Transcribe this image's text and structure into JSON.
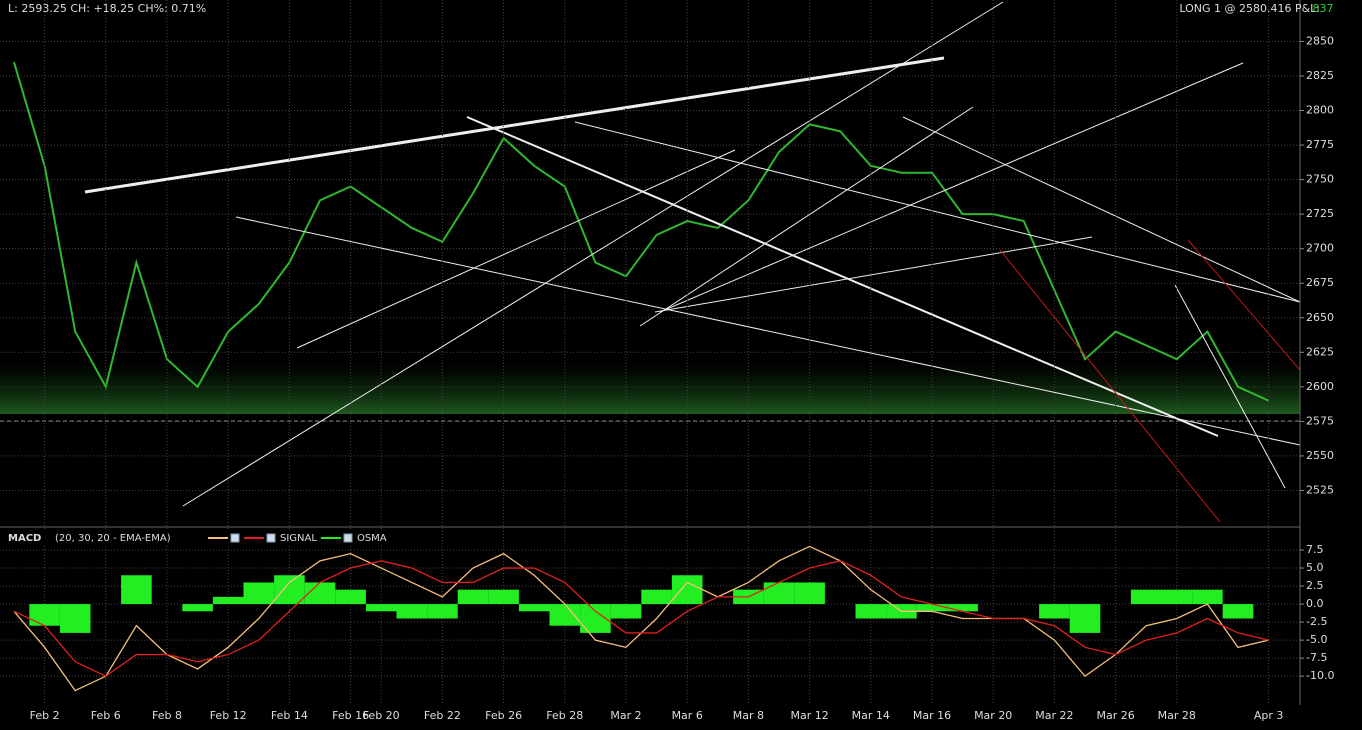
{
  "header": {
    "quote": "L: 2593.25 CH: +18.25 CH%: 0.71%",
    "position": "LONG 1 @ 2580.416 P&L:",
    "pnl": "837"
  },
  "chart_data": [
    {
      "type": "line",
      "color": "#2fb82f",
      "values": [
        2835,
        2760,
        2640,
        2600,
        2690,
        2620,
        2600,
        2640,
        2660,
        2690,
        2735,
        2745,
        2730,
        2715,
        2705,
        2740,
        2780,
        2760,
        2745,
        2690,
        2680,
        2710,
        2720,
        2715,
        2735,
        2770,
        2790,
        2785,
        2760,
        2755,
        2755,
        2725,
        2725,
        2720,
        2670,
        2620,
        2640,
        2630,
        2620,
        2640,
        2600,
        2590
      ],
      "ylim": [
        2500,
        2880
      ],
      "yticks": [
        2525,
        2550,
        2575,
        2600,
        2625,
        2650,
        2675,
        2700,
        2725,
        2750,
        2775,
        2800,
        2825,
        2850
      ],
      "grid": true
    },
    {
      "type": "macd",
      "title": "MACD",
      "subtitle": "(20, 30, 20 - EMA-EMA)",
      "categories": [
        null,
        "Feb 2",
        null,
        "Feb 6",
        null,
        "Feb 8",
        null,
        "Feb 12",
        null,
        "Feb 14",
        null,
        "Feb 16",
        "Feb 20",
        null,
        "Feb 22",
        null,
        "Feb 26",
        null,
        "Feb 28",
        null,
        "Mar 2",
        null,
        "Mar 6",
        null,
        "Mar 8",
        null,
        "Mar 12",
        null,
        "Mar 14",
        null,
        "Mar 16",
        null,
        "Mar 20",
        null,
        "Mar 22",
        null,
        "Mar 26",
        null,
        "Mar 28",
        null,
        null,
        "Apr 3"
      ],
      "series": [
        {
          "color": "#f5c07a",
          "values": [
            -1,
            -6,
            -12,
            -10,
            -3,
            -7,
            -9,
            -6,
            -2,
            3,
            6,
            7,
            5,
            3,
            1,
            5,
            7,
            4,
            0,
            -5,
            -6,
            -2,
            3,
            1,
            3,
            6,
            8,
            6,
            2,
            -1,
            -1,
            -2,
            -2,
            -2,
            -5,
            -10,
            -7,
            -3,
            -2,
            0,
            -6,
            -5
          ]
        },
        {
          "name": "SIGNAL",
          "color": "#e02020",
          "values": [
            -1,
            -3,
            -8,
            -10,
            -7,
            -7,
            -8,
            -7,
            -5,
            -1,
            3,
            5,
            6,
            5,
            3,
            3,
            5,
            5,
            3,
            -1,
            -4,
            -4,
            -1,
            1,
            1,
            3,
            5,
            6,
            4,
            1,
            0,
            -1,
            -2,
            -2,
            -3,
            -6,
            -7,
            -5,
            -4,
            -2,
            -4,
            -5
          ]
        },
        {
          "name": "OSMA",
          "color": "#22ee22",
          "values": [
            0,
            -3,
            -4,
            0,
            4,
            0,
            -1,
            1,
            3,
            4,
            3,
            2,
            -1,
            -2,
            -2,
            2,
            2,
            -1,
            -3,
            -4,
            -2,
            2,
            4,
            0,
            2,
            3,
            3,
            0,
            -2,
            -2,
            -1,
            -1,
            0,
            0,
            -2,
            -4,
            0,
            2,
            2,
            2,
            -2,
            0
          ]
        }
      ],
      "ylim": [
        -14,
        10
      ],
      "yticks": [
        7.5,
        {
          "value": 5,
          "label": "5.0"
        },
        2.5,
        {
          "value": 0,
          "label": "0.0"
        },
        -2.5,
        {
          "value": -5,
          "label": "-5.0"
        },
        -7.5,
        {
          "value": -10,
          "label": "-10.0"
        }
      ],
      "grid": true
    }
  ]
}
